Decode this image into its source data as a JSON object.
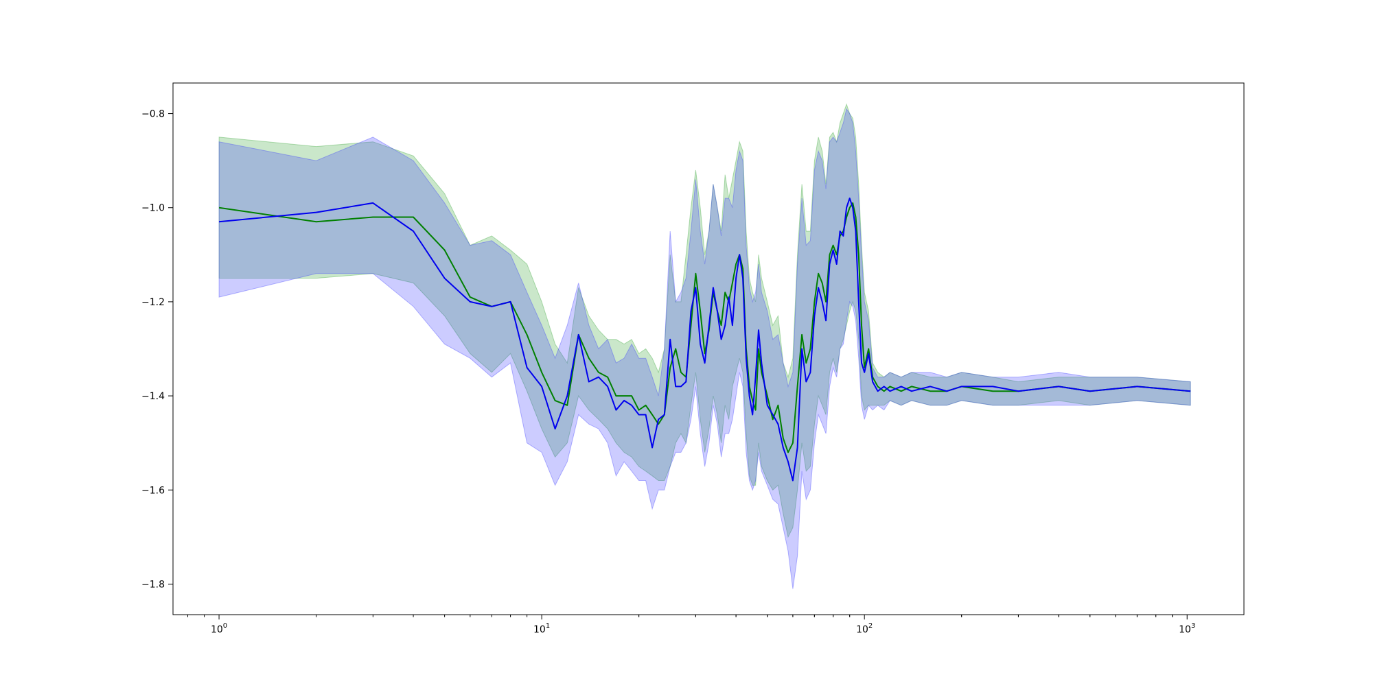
{
  "chart_data": {
    "type": "line",
    "title": "",
    "xlabel": "",
    "ylabel": "",
    "xscale": "log",
    "xlim": [
      0.72,
      1500
    ],
    "ylim": [
      -1.865,
      -0.735
    ],
    "grid": false,
    "legend": "none",
    "x_ticks": [
      {
        "value": 1,
        "base": "10",
        "exp": "0"
      },
      {
        "value": 10,
        "base": "10",
        "exp": "1"
      },
      {
        "value": 100,
        "base": "10",
        "exp": "2"
      },
      {
        "value": 1000,
        "base": "10",
        "exp": "3"
      }
    ],
    "y_ticks": [
      {
        "value": -0.8,
        "label": "−0.8"
      },
      {
        "value": -1.0,
        "label": "−1.0"
      },
      {
        "value": -1.2,
        "label": "−1.2"
      },
      {
        "value": -1.4,
        "label": "−1.4"
      },
      {
        "value": -1.6,
        "label": "−1.6"
      },
      {
        "value": -1.8,
        "label": "−1.8"
      }
    ],
    "series": [
      {
        "color": "#008000",
        "fill_color": "#2ca02c",
        "fill_opacity": 0.25,
        "x": [
          1,
          2,
          3,
          4,
          5,
          6,
          7,
          8,
          9,
          10,
          11,
          12,
          13,
          14,
          15,
          16,
          17,
          18,
          19,
          20,
          21,
          22,
          23,
          24,
          25,
          26,
          27,
          28,
          29,
          30,
          31,
          32,
          33,
          34,
          35,
          36,
          37,
          38,
          39,
          40,
          41,
          42,
          43,
          44,
          45,
          46,
          47,
          48,
          50,
          52,
          54,
          56,
          58,
          60,
          62,
          64,
          66,
          68,
          70,
          72,
          74,
          76,
          78,
          80,
          82,
          84,
          86,
          88,
          90,
          92,
          94,
          96,
          98,
          100,
          103,
          106,
          110,
          115,
          120,
          130,
          140,
          160,
          180,
          200,
          250,
          300,
          400,
          500,
          700,
          1024
        ],
        "y": [
          -1.0,
          -1.03,
          -1.02,
          -1.02,
          -1.09,
          -1.19,
          -1.21,
          -1.2,
          -1.27,
          -1.35,
          -1.41,
          -1.42,
          -1.27,
          -1.32,
          -1.35,
          -1.36,
          -1.4,
          -1.4,
          -1.4,
          -1.43,
          -1.42,
          -1.44,
          -1.46,
          -1.44,
          -1.34,
          -1.3,
          -1.35,
          -1.36,
          -1.25,
          -1.14,
          -1.22,
          -1.31,
          -1.26,
          -1.18,
          -1.22,
          -1.25,
          -1.18,
          -1.2,
          -1.16,
          -1.12,
          -1.1,
          -1.13,
          -1.3,
          -1.38,
          -1.41,
          -1.43,
          -1.3,
          -1.35,
          -1.4,
          -1.45,
          -1.42,
          -1.49,
          -1.52,
          -1.5,
          -1.38,
          -1.27,
          -1.33,
          -1.3,
          -1.2,
          -1.14,
          -1.16,
          -1.2,
          -1.1,
          -1.08,
          -1.1,
          -1.06,
          -1.05,
          -1.02,
          -1.0,
          -0.99,
          -1.02,
          -1.1,
          -1.25,
          -1.34,
          -1.3,
          -1.36,
          -1.38,
          -1.39,
          -1.38,
          -1.39,
          -1.38,
          -1.39,
          -1.39,
          -1.38,
          -1.39,
          -1.39,
          -1.38,
          -1.39,
          -1.38,
          -1.39
        ],
        "upper": [
          -0.85,
          -0.87,
          -0.86,
          -0.89,
          -0.97,
          -1.08,
          -1.06,
          -1.09,
          -1.12,
          -1.2,
          -1.29,
          -1.33,
          -1.17,
          -1.23,
          -1.26,
          -1.28,
          -1.28,
          -1.29,
          -1.28,
          -1.31,
          -1.3,
          -1.32,
          -1.35,
          -1.3,
          -1.1,
          -1.2,
          -1.2,
          -1.1,
          -1.0,
          -0.92,
          -1.0,
          -1.1,
          -1.05,
          -0.95,
          -1.0,
          -1.05,
          -0.93,
          -0.98,
          -0.94,
          -0.9,
          -0.86,
          -0.88,
          -1.05,
          -1.15,
          -1.18,
          -1.2,
          -1.1,
          -1.15,
          -1.2,
          -1.25,
          -1.23,
          -1.33,
          -1.36,
          -1.32,
          -1.1,
          -0.95,
          -1.05,
          -1.05,
          -0.9,
          -0.85,
          -0.88,
          -0.95,
          -0.85,
          -0.84,
          -0.86,
          -0.82,
          -0.8,
          -0.78,
          -0.8,
          -0.81,
          -0.85,
          -0.95,
          -1.08,
          -1.18,
          -1.22,
          -1.33,
          -1.35,
          -1.36,
          -1.35,
          -1.36,
          -1.35,
          -1.36,
          -1.36,
          -1.35,
          -1.36,
          -1.37,
          -1.36,
          -1.36,
          -1.36,
          -1.37
        ],
        "lower": [
          -1.15,
          -1.15,
          -1.14,
          -1.16,
          -1.23,
          -1.31,
          -1.35,
          -1.31,
          -1.39,
          -1.47,
          -1.53,
          -1.5,
          -1.4,
          -1.43,
          -1.45,
          -1.47,
          -1.5,
          -1.52,
          -1.53,
          -1.55,
          -1.56,
          -1.57,
          -1.58,
          -1.58,
          -1.55,
          -1.5,
          -1.48,
          -1.5,
          -1.42,
          -1.35,
          -1.45,
          -1.52,
          -1.47,
          -1.4,
          -1.44,
          -1.5,
          -1.42,
          -1.45,
          -1.38,
          -1.35,
          -1.32,
          -1.35,
          -1.48,
          -1.57,
          -1.59,
          -1.59,
          -1.5,
          -1.55,
          -1.58,
          -1.6,
          -1.59,
          -1.65,
          -1.7,
          -1.68,
          -1.6,
          -1.5,
          -1.56,
          -1.55,
          -1.46,
          -1.4,
          -1.42,
          -1.44,
          -1.35,
          -1.32,
          -1.35,
          -1.3,
          -1.28,
          -1.25,
          -1.22,
          -1.2,
          -1.22,
          -1.28,
          -1.4,
          -1.43,
          -1.42,
          -1.42,
          -1.42,
          -1.42,
          -1.41,
          -1.42,
          -1.41,
          -1.42,
          -1.42,
          -1.41,
          -1.42,
          -1.42,
          -1.41,
          -1.42,
          -1.41,
          -1.42
        ]
      },
      {
        "color": "#0000ee",
        "fill_color": "#3333ff",
        "fill_opacity": 0.25,
        "x": [
          1,
          2,
          3,
          4,
          5,
          6,
          7,
          8,
          9,
          10,
          11,
          12,
          13,
          14,
          15,
          16,
          17,
          18,
          19,
          20,
          21,
          22,
          23,
          24,
          25,
          26,
          27,
          28,
          29,
          30,
          31,
          32,
          33,
          34,
          35,
          36,
          37,
          38,
          39,
          40,
          41,
          42,
          43,
          44,
          45,
          46,
          47,
          48,
          50,
          52,
          54,
          56,
          58,
          60,
          62,
          64,
          66,
          68,
          70,
          72,
          74,
          76,
          78,
          80,
          82,
          84,
          86,
          88,
          90,
          92,
          94,
          96,
          98,
          100,
          103,
          106,
          110,
          115,
          120,
          130,
          140,
          160,
          180,
          200,
          250,
          300,
          400,
          500,
          700,
          1024
        ],
        "y": [
          -1.03,
          -1.01,
          -0.99,
          -1.05,
          -1.15,
          -1.2,
          -1.21,
          -1.2,
          -1.34,
          -1.38,
          -1.47,
          -1.4,
          -1.27,
          -1.37,
          -1.36,
          -1.38,
          -1.43,
          -1.41,
          -1.42,
          -1.44,
          -1.44,
          -1.51,
          -1.45,
          -1.44,
          -1.28,
          -1.38,
          -1.38,
          -1.37,
          -1.22,
          -1.17,
          -1.29,
          -1.33,
          -1.25,
          -1.17,
          -1.22,
          -1.28,
          -1.25,
          -1.19,
          -1.25,
          -1.15,
          -1.1,
          -1.15,
          -1.32,
          -1.4,
          -1.44,
          -1.36,
          -1.26,
          -1.33,
          -1.42,
          -1.44,
          -1.46,
          -1.51,
          -1.54,
          -1.58,
          -1.51,
          -1.3,
          -1.37,
          -1.35,
          -1.23,
          -1.17,
          -1.2,
          -1.24,
          -1.12,
          -1.09,
          -1.12,
          -1.05,
          -1.06,
          -1.0,
          -0.98,
          -1.0,
          -1.05,
          -1.2,
          -1.33,
          -1.35,
          -1.31,
          -1.37,
          -1.39,
          -1.38,
          -1.39,
          -1.38,
          -1.39,
          -1.38,
          -1.39,
          -1.38,
          -1.38,
          -1.39,
          -1.38,
          -1.39,
          -1.38,
          -1.39
        ],
        "upper": [
          -0.86,
          -0.9,
          -0.85,
          -0.9,
          -0.99,
          -1.08,
          -1.07,
          -1.1,
          -1.18,
          -1.25,
          -1.32,
          -1.25,
          -1.16,
          -1.25,
          -1.3,
          -1.28,
          -1.33,
          -1.32,
          -1.29,
          -1.32,
          -1.32,
          -1.36,
          -1.4,
          -1.3,
          -1.05,
          -1.2,
          -1.18,
          -1.15,
          -1.05,
          -0.94,
          -1.05,
          -1.12,
          -1.05,
          -0.95,
          -1.0,
          -1.06,
          -0.98,
          -0.98,
          -1.0,
          -0.92,
          -0.88,
          -0.9,
          -1.08,
          -1.17,
          -1.2,
          -1.18,
          -1.12,
          -1.18,
          -1.22,
          -1.28,
          -1.27,
          -1.33,
          -1.38,
          -1.35,
          -1.12,
          -0.98,
          -1.08,
          -1.07,
          -0.92,
          -0.88,
          -0.9,
          -0.96,
          -0.86,
          -0.85,
          -0.86,
          -0.84,
          -0.82,
          -0.79,
          -0.8,
          -0.82,
          -0.88,
          -0.98,
          -1.1,
          -1.2,
          -1.24,
          -1.34,
          -1.36,
          -1.36,
          -1.35,
          -1.36,
          -1.35,
          -1.35,
          -1.36,
          -1.35,
          -1.36,
          -1.36,
          -1.35,
          -1.36,
          -1.36,
          -1.37
        ],
        "lower": [
          -1.19,
          -1.14,
          -1.14,
          -1.21,
          -1.29,
          -1.32,
          -1.36,
          -1.33,
          -1.5,
          -1.52,
          -1.59,
          -1.54,
          -1.44,
          -1.46,
          -1.47,
          -1.5,
          -1.57,
          -1.54,
          -1.56,
          -1.58,
          -1.58,
          -1.64,
          -1.6,
          -1.6,
          -1.55,
          -1.52,
          -1.52,
          -1.5,
          -1.45,
          -1.38,
          -1.48,
          -1.55,
          -1.5,
          -1.42,
          -1.46,
          -1.53,
          -1.48,
          -1.48,
          -1.45,
          -1.4,
          -1.35,
          -1.38,
          -1.52,
          -1.58,
          -1.6,
          -1.58,
          -1.52,
          -1.56,
          -1.59,
          -1.62,
          -1.63,
          -1.68,
          -1.73,
          -1.81,
          -1.74,
          -1.56,
          -1.62,
          -1.6,
          -1.5,
          -1.44,
          -1.46,
          -1.48,
          -1.38,
          -1.34,
          -1.36,
          -1.3,
          -1.29,
          -1.24,
          -1.2,
          -1.21,
          -1.24,
          -1.32,
          -1.42,
          -1.45,
          -1.42,
          -1.43,
          -1.42,
          -1.43,
          -1.41,
          -1.42,
          -1.41,
          -1.42,
          -1.42,
          -1.41,
          -1.42,
          -1.42,
          -1.42,
          -1.42,
          -1.41,
          -1.42
        ]
      }
    ]
  }
}
